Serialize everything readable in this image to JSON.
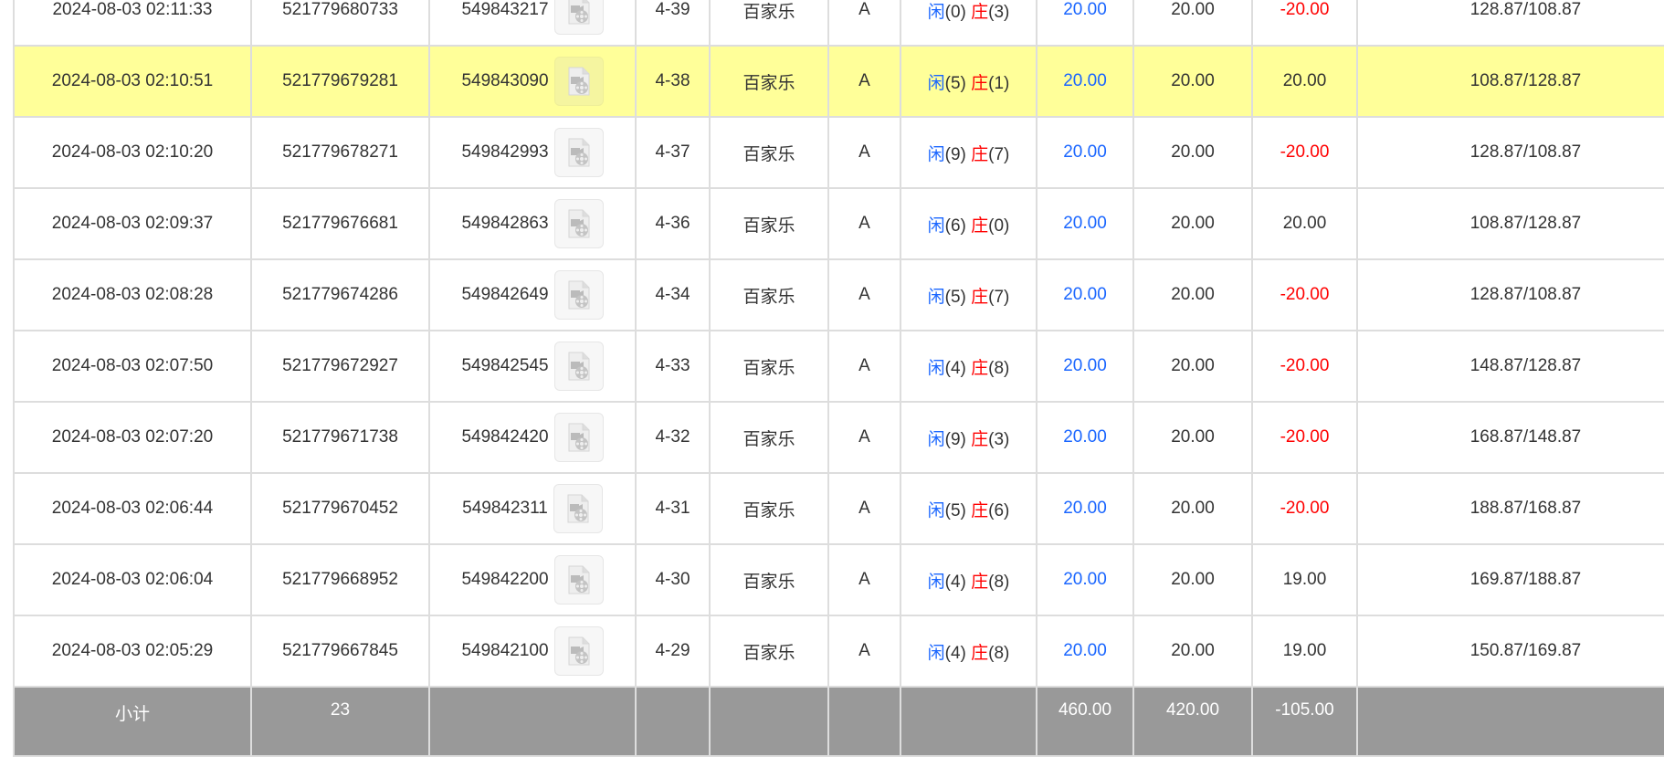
{
  "rows": [
    {
      "time": "2024-08-03 02:11:33",
      "bet_id": "521779680733",
      "round_id": "549843217",
      "shoe": "4-39",
      "game": "百家乐",
      "table": "A",
      "player_label": "闲",
      "player": "(0)",
      "banker_label": "庄",
      "banker": "(3)",
      "bet": "20.00",
      "valid": "20.00",
      "win": "-20.00",
      "win_neg": true,
      "balance": "128.87/108.87",
      "highlight": false
    },
    {
      "time": "2024-08-03 02:10:51",
      "bet_id": "521779679281",
      "round_id": "549843090",
      "shoe": "4-38",
      "game": "百家乐",
      "table": "A",
      "player_label": "闲",
      "player": "(5)",
      "banker_label": "庄",
      "banker": "(1)",
      "bet": "20.00",
      "valid": "20.00",
      "win": "20.00",
      "win_neg": false,
      "balance": "108.87/128.87",
      "highlight": true
    },
    {
      "time": "2024-08-03 02:10:20",
      "bet_id": "521779678271",
      "round_id": "549842993",
      "shoe": "4-37",
      "game": "百家乐",
      "table": "A",
      "player_label": "闲",
      "player": "(9)",
      "banker_label": "庄",
      "banker": "(7)",
      "bet": "20.00",
      "valid": "20.00",
      "win": "-20.00",
      "win_neg": true,
      "balance": "128.87/108.87",
      "highlight": false
    },
    {
      "time": "2024-08-03 02:09:37",
      "bet_id": "521779676681",
      "round_id": "549842863",
      "shoe": "4-36",
      "game": "百家乐",
      "table": "A",
      "player_label": "闲",
      "player": "(6)",
      "banker_label": "庄",
      "banker": "(0)",
      "bet": "20.00",
      "valid": "20.00",
      "win": "20.00",
      "win_neg": false,
      "balance": "108.87/128.87",
      "highlight": false
    },
    {
      "time": "2024-08-03 02:08:28",
      "bet_id": "521779674286",
      "round_id": "549842649",
      "shoe": "4-34",
      "game": "百家乐",
      "table": "A",
      "player_label": "闲",
      "player": "(5)",
      "banker_label": "庄",
      "banker": "(7)",
      "bet": "20.00",
      "valid": "20.00",
      "win": "-20.00",
      "win_neg": true,
      "balance": "128.87/108.87",
      "highlight": false
    },
    {
      "time": "2024-08-03 02:07:50",
      "bet_id": "521779672927",
      "round_id": "549842545",
      "shoe": "4-33",
      "game": "百家乐",
      "table": "A",
      "player_label": "闲",
      "player": "(4)",
      "banker_label": "庄",
      "banker": "(8)",
      "bet": "20.00",
      "valid": "20.00",
      "win": "-20.00",
      "win_neg": true,
      "balance": "148.87/128.87",
      "highlight": false
    },
    {
      "time": "2024-08-03 02:07:20",
      "bet_id": "521779671738",
      "round_id": "549842420",
      "shoe": "4-32",
      "game": "百家乐",
      "table": "A",
      "player_label": "闲",
      "player": "(9)",
      "banker_label": "庄",
      "banker": "(3)",
      "bet": "20.00",
      "valid": "20.00",
      "win": "-20.00",
      "win_neg": true,
      "balance": "168.87/148.87",
      "highlight": false
    },
    {
      "time": "2024-08-03 02:06:44",
      "bet_id": "521779670452",
      "round_id": "549842311",
      "shoe": "4-31",
      "game": "百家乐",
      "table": "A",
      "player_label": "闲",
      "player": "(5)",
      "banker_label": "庄",
      "banker": "(6)",
      "bet": "20.00",
      "valid": "20.00",
      "win": "-20.00",
      "win_neg": true,
      "balance": "188.87/168.87",
      "highlight": false
    },
    {
      "time": "2024-08-03 02:06:04",
      "bet_id": "521779668952",
      "round_id": "549842200",
      "shoe": "4-30",
      "game": "百家乐",
      "table": "A",
      "player_label": "闲",
      "player": "(4)",
      "banker_label": "庄",
      "banker": "(8)",
      "bet": "20.00",
      "valid": "20.00",
      "win": "19.00",
      "win_neg": false,
      "balance": "169.87/188.87",
      "highlight": false
    },
    {
      "time": "2024-08-03 02:05:29",
      "bet_id": "521779667845",
      "round_id": "549842100",
      "shoe": "4-29",
      "game": "百家乐",
      "table": "A",
      "player_label": "闲",
      "player": "(4)",
      "banker_label": "庄",
      "banker": "(8)",
      "bet": "20.00",
      "valid": "20.00",
      "win": "19.00",
      "win_neg": false,
      "balance": "150.87/169.87",
      "highlight": false
    }
  ],
  "subtotal": {
    "label": "小计",
    "count": "23",
    "bet": "460.00",
    "valid": "420.00",
    "win": "-105.00"
  },
  "colors": {
    "highlight": "#ffff99",
    "player": "#1a66ff",
    "negative": "#ff0000",
    "subtotal_bg": "#999999"
  },
  "icons": {
    "replay": "video-file-icon"
  }
}
